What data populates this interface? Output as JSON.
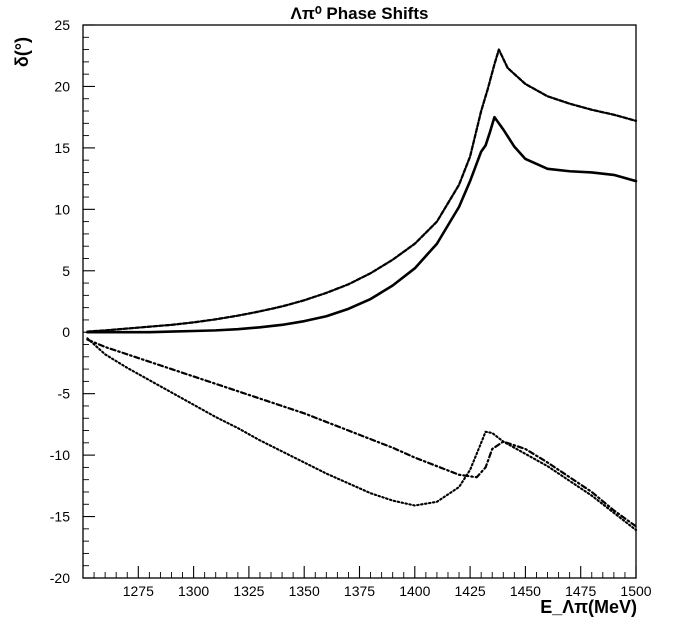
{
  "chart_data": {
    "type": "line",
    "title": "Λπ⁰ Phase Shifts",
    "xlabel": "E_Λπ(MeV)",
    "ylabel": "δ(°)",
    "xlim": [
      1250,
      1500
    ],
    "ylim": [
      -20,
      25
    ],
    "xticks": [
      1275,
      1300,
      1325,
      1350,
      1375,
      1400,
      1425,
      1450,
      1475,
      1500
    ],
    "yticks": [
      -20,
      -15,
      -10,
      -5,
      0,
      5,
      10,
      15,
      20,
      25
    ],
    "grid": false,
    "legend": "none",
    "series": [
      {
        "style": "solid",
        "color": "#000000",
        "x": [
          1252,
          1260,
          1270,
          1280,
          1290,
          1300,
          1310,
          1320,
          1330,
          1340,
          1350,
          1360,
          1370,
          1380,
          1390,
          1400,
          1410,
          1420,
          1425,
          1430,
          1432,
          1434,
          1436,
          1440,
          1445,
          1450,
          1460,
          1470,
          1480,
          1490,
          1500
        ],
        "y": [
          0.0,
          0.0,
          0.0,
          0.0,
          0.05,
          0.1,
          0.15,
          0.25,
          0.4,
          0.6,
          0.9,
          1.3,
          1.9,
          2.7,
          3.8,
          5.2,
          7.2,
          10.2,
          12.3,
          14.7,
          15.2,
          16.3,
          17.5,
          16.5,
          15.1,
          14.1,
          13.3,
          13.1,
          13.0,
          12.8,
          12.3
        ]
      },
      {
        "style": "dashed",
        "color": "#000000",
        "x": [
          1252,
          1260,
          1270,
          1280,
          1290,
          1300,
          1310,
          1320,
          1330,
          1340,
          1350,
          1360,
          1370,
          1380,
          1390,
          1400,
          1410,
          1420,
          1425,
          1430,
          1433,
          1436,
          1438,
          1442,
          1450,
          1460,
          1470,
          1480,
          1490,
          1500
        ],
        "y": [
          0.05,
          0.15,
          0.3,
          0.45,
          0.6,
          0.8,
          1.05,
          1.35,
          1.7,
          2.1,
          2.6,
          3.2,
          3.9,
          4.8,
          5.9,
          7.2,
          9.0,
          12.0,
          14.3,
          18.0,
          19.8,
          21.8,
          23.0,
          21.5,
          20.2,
          19.2,
          18.6,
          18.1,
          17.7,
          17.2
        ]
      },
      {
        "style": "dash-dot",
        "color": "#000000",
        "x": [
          1252,
          1260,
          1270,
          1280,
          1290,
          1300,
          1310,
          1320,
          1330,
          1340,
          1350,
          1360,
          1370,
          1380,
          1390,
          1400,
          1410,
          1420,
          1428,
          1432,
          1435,
          1440,
          1450,
          1460,
          1470,
          1480,
          1490,
          1500
        ],
        "y": [
          -0.6,
          -1.2,
          -1.8,
          -2.4,
          -3.0,
          -3.6,
          -4.2,
          -4.8,
          -5.4,
          -6.0,
          -6.6,
          -7.3,
          -8.0,
          -8.7,
          -9.4,
          -10.2,
          -10.9,
          -11.6,
          -11.8,
          -11.0,
          -9.5,
          -8.9,
          -9.5,
          -10.6,
          -11.8,
          -13.0,
          -14.5,
          -15.8
        ]
      },
      {
        "style": "dotted",
        "color": "#000000",
        "x": [
          1252,
          1260,
          1270,
          1280,
          1290,
          1300,
          1310,
          1320,
          1330,
          1340,
          1350,
          1360,
          1370,
          1380,
          1390,
          1400,
          1410,
          1420,
          1425,
          1430,
          1432,
          1435,
          1440,
          1450,
          1460,
          1470,
          1480,
          1490,
          1500
        ],
        "y": [
          -0.5,
          -1.8,
          -2.9,
          -3.9,
          -4.9,
          -5.9,
          -6.9,
          -7.8,
          -8.8,
          -9.7,
          -10.6,
          -11.5,
          -12.3,
          -13.1,
          -13.7,
          -14.1,
          -13.8,
          -12.6,
          -11.2,
          -9.0,
          -8.1,
          -8.2,
          -8.9,
          -9.9,
          -10.9,
          -12.1,
          -13.3,
          -14.7,
          -16.1
        ]
      }
    ]
  }
}
